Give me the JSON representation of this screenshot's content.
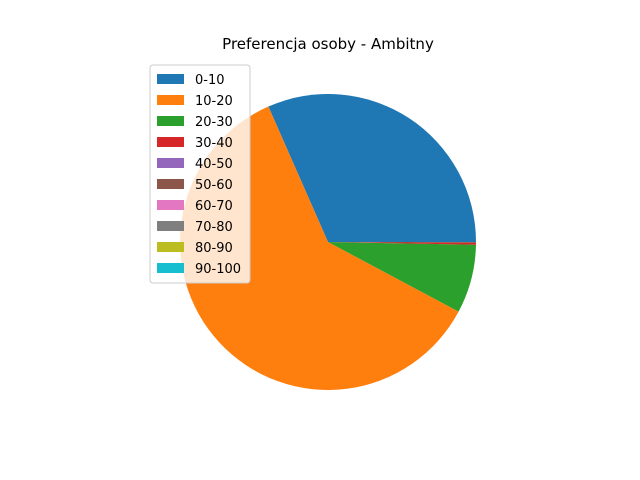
{
  "chart_data": {
    "type": "pie",
    "title": "Preferencja osoby - Ambitny",
    "legend_position": "upper-left",
    "categories": [
      "0-10",
      "10-20",
      "20-30",
      "30-40",
      "40-50",
      "50-60",
      "60-70",
      "70-80",
      "80-90",
      "90-100"
    ],
    "values": [
      31.6,
      60.6,
      7.5,
      0.2,
      0.0,
      0.1,
      0.0,
      0.0,
      0.0,
      0.0
    ],
    "colors": [
      "#1f77b4",
      "#ff7f0e",
      "#2ca02c",
      "#d62728",
      "#9467bd",
      "#8c564b",
      "#e377c2",
      "#7f7f7f",
      "#bcbd22",
      "#17becf"
    ]
  }
}
